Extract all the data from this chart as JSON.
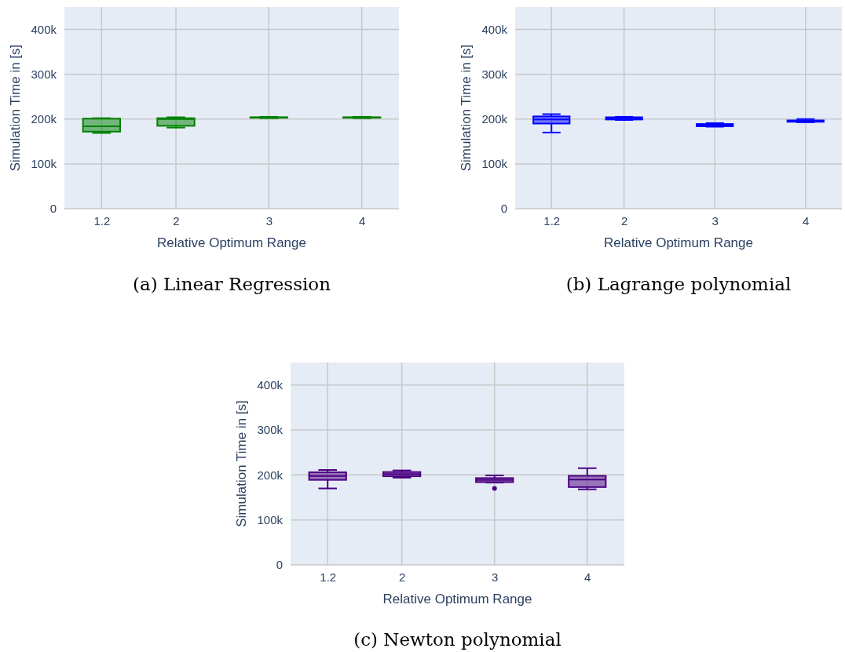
{
  "chart_data": [
    {
      "type": "box",
      "title": "(a) Linear Regression",
      "xlabel": "Relative Optimum Range",
      "ylabel": "Simulation Time in [s]",
      "x": [
        1.2,
        2,
        3,
        4
      ],
      "xlim": [
        0.8,
        4.4
      ],
      "xticks": [
        1.2,
        2,
        3,
        4
      ],
      "ylim": [
        0,
        450000
      ],
      "yticks": [
        {
          "value": 0,
          "label": "0"
        },
        {
          "value": 100000,
          "label": "100k"
        },
        {
          "value": 200000,
          "label": "200k"
        },
        {
          "value": 300000,
          "label": "300k"
        },
        {
          "value": 400000,
          "label": "400k"
        }
      ],
      "grid": true,
      "series": [
        {
          "color": "#008000",
          "boxes": [
            {
              "low": 169000,
              "q1": 172000,
              "median": 184000,
              "q3": 201000,
              "high": 202000
            },
            {
              "low": 181000,
              "q1": 185000,
              "median": 200000,
              "q3": 202000,
              "high": 204000
            },
            {
              "low": 202000,
              "q1": 203000,
              "median": 203500,
              "q3": 204000,
              "high": 205000
            },
            {
              "low": 202000,
              "q1": 203000,
              "median": 203500,
              "q3": 204000,
              "high": 205000
            }
          ]
        }
      ]
    },
    {
      "type": "box",
      "title": "(b) Lagrange polynomial",
      "xlabel": "Relative Optimum Range",
      "ylabel": "Simulation Time in [s]",
      "x": [
        1.2,
        2,
        3,
        4
      ],
      "xlim": [
        0.8,
        4.4
      ],
      "xticks": [
        1.2,
        2,
        3,
        4
      ],
      "ylim": [
        0,
        450000
      ],
      "yticks": [
        {
          "value": 0,
          "label": "0"
        },
        {
          "value": 100000,
          "label": "100k"
        },
        {
          "value": 200000,
          "label": "200k"
        },
        {
          "value": 300000,
          "label": "300k"
        },
        {
          "value": 400000,
          "label": "400k"
        }
      ],
      "grid": true,
      "series": [
        {
          "color": "#0000ff",
          "boxes": [
            {
              "low": 170000,
              "q1": 190000,
              "median": 199000,
              "q3": 206000,
              "high": 211000
            },
            {
              "low": 198000,
              "q1": 199000,
              "median": 201000,
              "q3": 204000,
              "high": 205000
            },
            {
              "low": 183000,
              "q1": 184000,
              "median": 186000,
              "q3": 189000,
              "high": 191000
            },
            {
              "low": 193000,
              "q1": 194000,
              "median": 195000,
              "q3": 197000,
              "high": 200000
            }
          ]
        }
      ]
    },
    {
      "type": "box",
      "title": "(c) Newton polynomial",
      "xlabel": "Relative Optimum Range",
      "ylabel": "Simulation Time in [s]",
      "x": [
        1.2,
        2,
        3,
        4
      ],
      "xlim": [
        0.8,
        4.4
      ],
      "xticks": [
        1.2,
        2,
        3,
        4
      ],
      "ylim": [
        0,
        450000
      ],
      "yticks": [
        {
          "value": 0,
          "label": "0"
        },
        {
          "value": 100000,
          "label": "100k"
        },
        {
          "value": 200000,
          "label": "200k"
        },
        {
          "value": 300000,
          "label": "300k"
        },
        {
          "value": 400000,
          "label": "400k"
        }
      ],
      "grid": true,
      "series": [
        {
          "color": "#4b0082",
          "boxes": [
            {
              "low": 170000,
              "q1": 189000,
              "median": 197500,
              "q3": 206000,
              "high": 211000
            },
            {
              "low": 194000,
              "q1": 197000,
              "median": 202000,
              "q3": 206500,
              "high": 210000
            },
            {
              "low": 183000,
              "q1": 184000,
              "median": 189000,
              "q3": 193000,
              "high": 199000,
              "outliers": [
                170000
              ]
            },
            {
              "low": 168000,
              "q1": 173000,
              "median": 189500,
              "q3": 198000,
              "high": 215000
            }
          ]
        }
      ]
    }
  ]
}
